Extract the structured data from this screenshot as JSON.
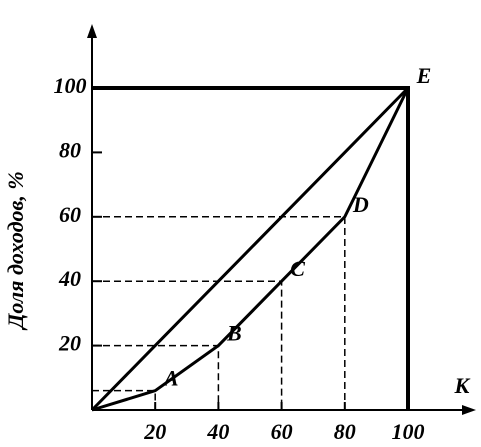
{
  "chart_data": {
    "type": "line",
    "y_label": "Доля доходов, %",
    "x_label": "К",
    "x": [
      0,
      20,
      40,
      60,
      80,
      100
    ],
    "series": [
      {
        "color": "#000000",
        "values": [
          0,
          20,
          40,
          60,
          80,
          100
        ]
      },
      {
        "color": "#000000",
        "values": [
          0,
          6,
          20,
          40,
          60,
          100
        ],
        "point_labels": [
          null,
          "A",
          "B",
          "C",
          "D",
          "E"
        ]
      }
    ],
    "xlim": [
      0,
      100
    ],
    "ylim": [
      0,
      100
    ],
    "xticks": [
      20,
      40,
      60,
      80,
      100
    ],
    "yticks": [
      20,
      40,
      60,
      80,
      100
    ]
  }
}
